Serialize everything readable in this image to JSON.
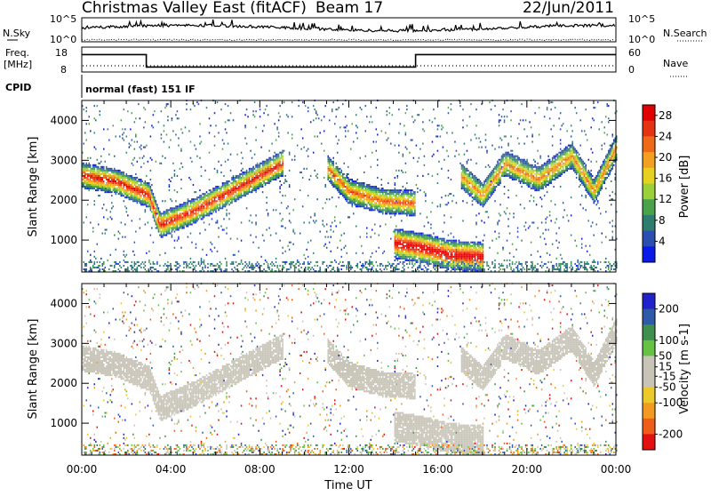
{
  "header": {
    "title": "Christmas Valley East (fitACF)",
    "beam": "Beam 17",
    "date": "22/Jun/2011"
  },
  "status_panels": {
    "nsky_label": "N.Sky",
    "nsearch_label": "N.Search",
    "noise_ticks": [
      "10^5",
      "10^0"
    ],
    "freq_label": "Freq.",
    "freq_unit": "[MHz]",
    "freq_ticks": [
      "18",
      "8"
    ],
    "nave_label": "Nave",
    "nave_ticks": [
      "60",
      "0"
    ],
    "cpid_label": "CPID",
    "cpid_text": "normal (fast) 151 IF"
  },
  "colors": {
    "power_scale": [
      "#0a1ae8",
      "#2a4fb0",
      "#2e7d6e",
      "#4aa24a",
      "#9ad13a",
      "#e6d21e",
      "#f2a020",
      "#ee6a18",
      "#e53215",
      "#e00000"
    ],
    "velocity_scale": [
      "#2222cc",
      "#2f5aa8",
      "#3f8f4f",
      "#66c244",
      "#c8c4b8",
      "#c8c4b8",
      "#ecca2c",
      "#f39a22",
      "#ee5d19",
      "#e21010"
    ],
    "ground_scatter": "#c8c4b8"
  },
  "chart_data": [
    {
      "type": "heatmap",
      "name": "power",
      "ylabel": "Slant Range [km]",
      "yticks": [
        "1000",
        "2000",
        "3000",
        "4000"
      ],
      "ylim": [
        200,
        4500
      ],
      "xlim_hours": [
        0,
        24
      ],
      "colorbar_label": "Power [dB]",
      "colorbar_ticks": [
        "4",
        "8",
        "12",
        "16",
        "20",
        "24",
        "28"
      ],
      "colorbar_range": [
        0,
        30
      ],
      "features": [
        {
          "t": [
            0,
            1.5,
            3,
            3.5,
            5,
            8,
            9
          ],
          "r": [
            2600,
            2450,
            2100,
            1350,
            1700,
            2600,
            2900
          ],
          "peak_db": 26
        },
        {
          "t": [
            11,
            12,
            13.5,
            15
          ],
          "r": [
            2800,
            2200,
            1950,
            1900
          ],
          "peak_db": 22
        },
        {
          "t": [
            14,
            15.5,
            16.5,
            18
          ],
          "r": [
            900,
            750,
            600,
            550
          ],
          "peak_db": 30
        },
        {
          "t": [
            17,
            18,
            19,
            20.5,
            22,
            23,
            24
          ],
          "r": [
            2600,
            2100,
            2900,
            2500,
            3100,
            2200,
            3300
          ],
          "peak_db": 20
        }
      ]
    },
    {
      "type": "heatmap",
      "name": "velocity",
      "ylabel": "Slant Range [km]",
      "yticks": [
        "1000",
        "2000",
        "3000",
        "4000"
      ],
      "ylim": [
        200,
        4500
      ],
      "xlabel": "Time UT",
      "xticks": [
        "00:00",
        "04:00",
        "08:00",
        "12:00",
        "16:00",
        "20:00",
        "00:00"
      ],
      "xlim_hours": [
        0,
        24
      ],
      "colorbar_label": "Velocity [m s-1]",
      "colorbar_ticks": [
        "200",
        "100",
        "50",
        "15",
        "-15",
        "-50",
        "-100",
        "-200"
      ],
      "colorbar_range": [
        -250,
        250
      ]
    },
    {
      "type": "line",
      "name": "frequency",
      "x_hours": [
        0,
        2.9,
        2.9,
        15,
        15,
        24
      ],
      "y_mhz": [
        15,
        15,
        10,
        10,
        15,
        15
      ],
      "ylim": [
        8,
        18
      ]
    }
  ]
}
